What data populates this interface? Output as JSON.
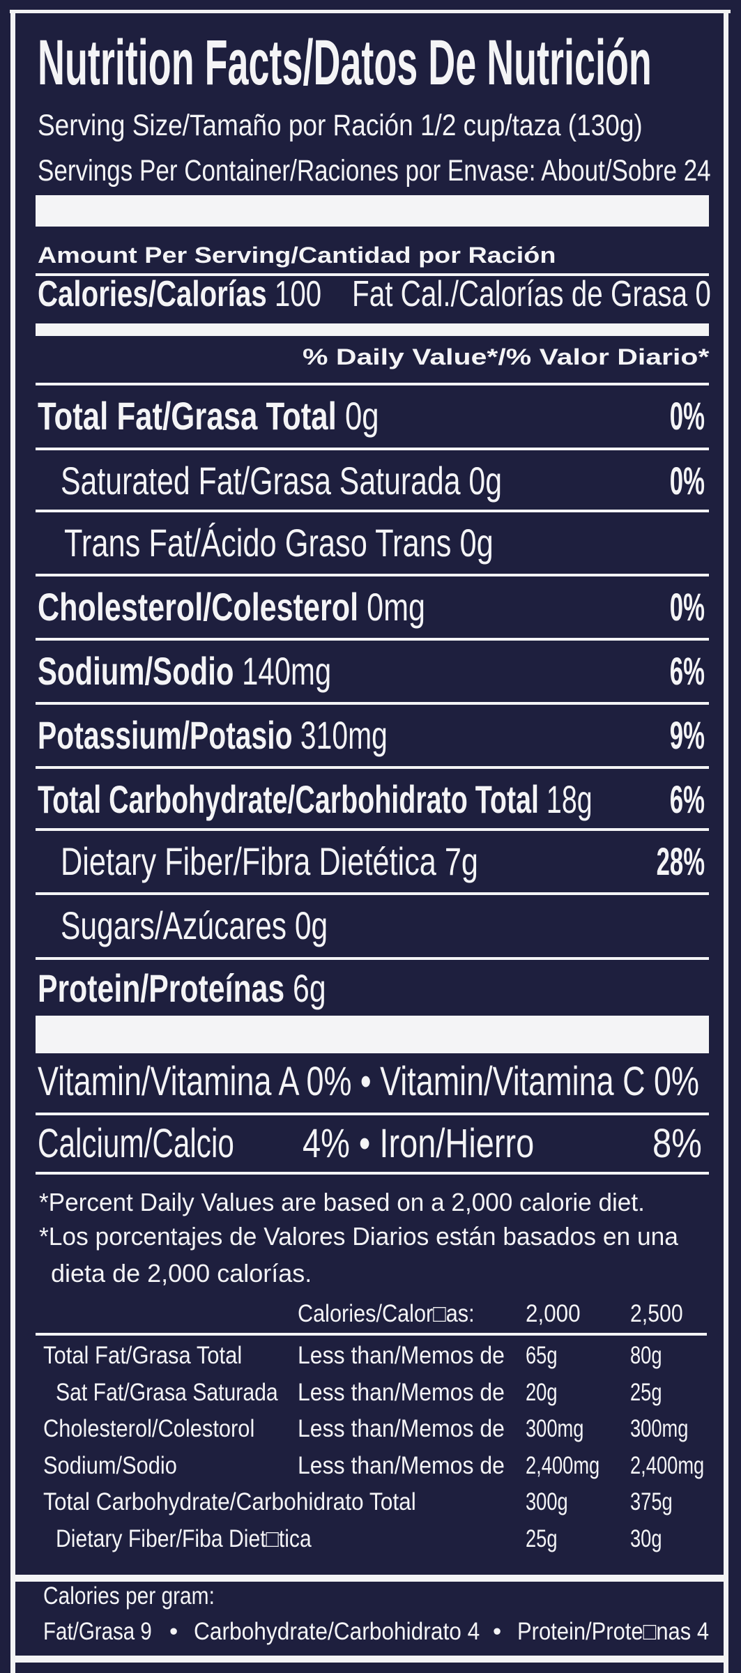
{
  "label": {
    "title": "Nutrition Facts/Datos De Nutrición",
    "serving_size": "Serving Size/Tamaño por Ración 1/2 cup/taza (130g)",
    "servings_per_container": "Servings Per Container/Raciones por Envase: About/Sobre 24",
    "amount_per_serving": "Amount Per Serving/Cantidad por Ración",
    "calories": {
      "label": "Calories/Calorías",
      "value": "100"
    },
    "fat_calories": "Fat Cal./Calorías de Grasa 0",
    "daily_value_header": "% Daily Value*/% Valor Diario*",
    "nutrients": [
      {
        "name": "Total Fat/Grasa Total",
        "amount": "0g",
        "dv": "0%",
        "bold": true
      },
      {
        "name": "Saturated Fat/Grasa Saturada",
        "amount": "0g",
        "dv": "0%",
        "bold": false
      },
      {
        "name": "Trans Fat/Ácido Graso Trans",
        "amount": "0g",
        "dv": "",
        "bold": false
      },
      {
        "name": "Cholesterol/Colesterol",
        "amount": "0mg",
        "dv": "0%",
        "bold": true
      },
      {
        "name": "Sodium/Sodio",
        "amount": "140mg",
        "dv": "6%",
        "bold": true
      },
      {
        "name": "Potassium/Potasio",
        "amount": "310mg",
        "dv": "9%",
        "bold": true
      },
      {
        "name": "Total Carbohydrate/Carbohidrato Total",
        "amount": "18g",
        "dv": "6%",
        "bold": true
      },
      {
        "name": "Dietary Fiber/Fibra Dietética",
        "amount": "7g",
        "dv": "28%",
        "bold": false
      },
      {
        "name": "Sugars/Azúcares",
        "amount": "0g",
        "dv": "",
        "bold": false
      },
      {
        "name": "Protein/Proteínas",
        "amount": "6g",
        "dv": "",
        "bold": true
      }
    ],
    "vitamins": "Vitamin/Vitamina A 0% • Vitamin/Vitamina C 0%",
    "calcium": "Calcium/Calcio",
    "calcium_iron": "4% • Iron/Hierro",
    "iron_value": "8%",
    "footnotes": [
      "*Percent Daily Values are based on a 2,000 calorie diet.",
      "*Los porcentajes de Valores Diarios están basados en una",
      "dieta de 2,000 calorías."
    ],
    "reference_table": {
      "header": {
        "label": "Calories/Calor□as:",
        "col1": "2,000",
        "col2": "2,500"
      },
      "rows": [
        {
          "name": "Total Fat/Grasa Total",
          "qualifier": "Less than/Memos de",
          "v1": "65g",
          "v2": "80g"
        },
        {
          "name": "Sat Fat/Grasa Saturada",
          "qualifier": "Less than/Memos de",
          "v1": "20g",
          "v2": "25g"
        },
        {
          "name": "Cholesterol/Colestorol",
          "qualifier": "Less than/Memos de",
          "v1": "300mg",
          "v2": "300mg"
        },
        {
          "name": "Sodium/Sodio",
          "qualifier": "Less than/Memos de",
          "v1": "2,400mg",
          "v2": "2,400mg"
        },
        {
          "name": "Total Carbohydrate/Carbohidrato Total",
          "qualifier": "",
          "v1": "300g",
          "v2": "375g"
        },
        {
          "name": "Dietary Fiber/Fiba Diet□tica",
          "qualifier": "",
          "v1": "25g",
          "v2": "30g"
        }
      ]
    },
    "calories_per_gram": {
      "heading": "Calories per gram:",
      "fat": "Fat/Grasa 9",
      "carbohydrate": "Carbohydrate/Carbohidrato 4",
      "protein": "Protein/Prote□nas 4",
      "separator": "•"
    },
    "colors": {
      "background": "#1e1f3e",
      "foreground": "#f4f4f6"
    }
  }
}
